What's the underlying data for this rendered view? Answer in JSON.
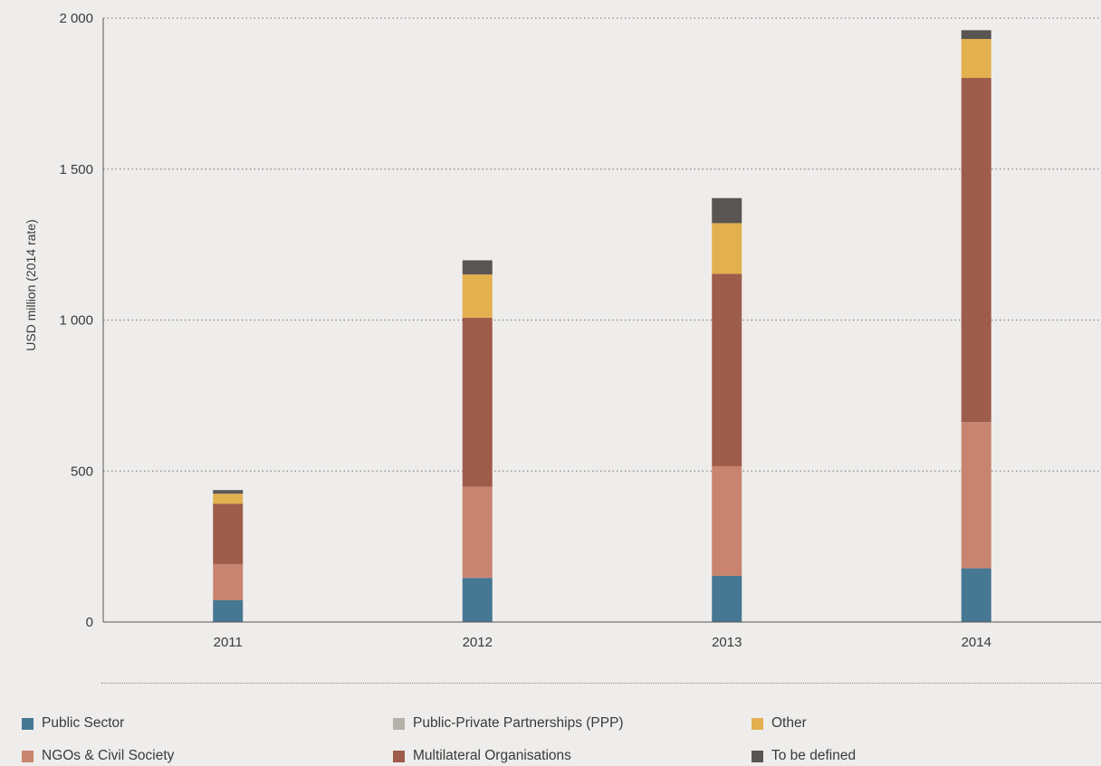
{
  "chart_data": {
    "type": "bar",
    "stacked": true,
    "title": "",
    "xlabel": "",
    "ylabel": "USD million (2014 rate)",
    "ylim": [
      0,
      2000
    ],
    "yticks": [
      0,
      500,
      1000,
      1500,
      2000
    ],
    "ytick_labels": [
      "0",
      "500",
      "1 000",
      "1 500",
      "2 000"
    ],
    "grid": true,
    "legend_position": "bottom",
    "categories": [
      "2011",
      "2012",
      "2013",
      "2014"
    ],
    "series": [
      {
        "name": "Public Sector",
        "color": "#467793",
        "values": [
          72,
          146,
          153,
          178
        ]
      },
      {
        "name": "NGOs & Civil Society",
        "color": "#c8846f",
        "values": [
          120,
          302,
          363,
          484
        ]
      },
      {
        "name": "Public-Private Partnerships (PPP)",
        "color": "#b5b0a8",
        "values": [
          0,
          0,
          0,
          0
        ]
      },
      {
        "name": "Multilateral Organisations",
        "color": "#9e5c4b",
        "values": [
          200,
          560,
          637,
          1140
        ]
      },
      {
        "name": "Other",
        "color": "#e3b04f",
        "values": [
          33,
          143,
          168,
          129
        ]
      },
      {
        "name": "To be defined",
        "color": "#595552",
        "values": [
          12,
          47,
          83,
          29
        ]
      }
    ]
  },
  "legend": [
    {
      "label": "Public Sector",
      "color": "#467793"
    },
    {
      "label": "Public-Private Partnerships (PPP)",
      "color": "#b5b0a8"
    },
    {
      "label": "Other",
      "color": "#e3b04f"
    },
    {
      "label": "NGOs & Civil Society",
      "color": "#c8846f"
    },
    {
      "label": "Multilateral Organisations",
      "color": "#9e5c4b"
    },
    {
      "label": "To be defined",
      "color": "#595552"
    }
  ]
}
